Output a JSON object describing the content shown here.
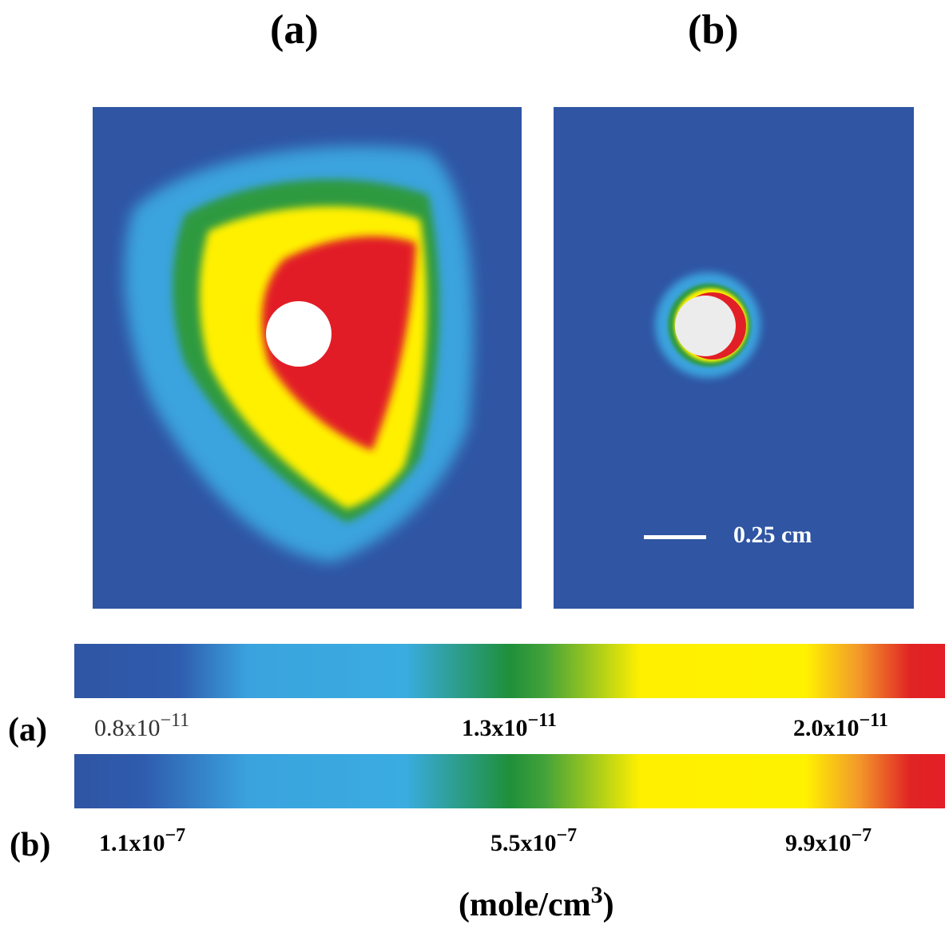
{
  "chart_data": {
    "type": "heatmap",
    "panels": [
      {
        "label": "(a)",
        "colorbar": {
          "label": "(a)",
          "ticks": [
            "0.8x10",
            "1.3x10",
            "2.0x10"
          ],
          "exponents": [
            "−11",
            "−11",
            "−11"
          ],
          "values": [
            8e-12,
            1.3e-11,
            2e-11
          ]
        }
      },
      {
        "label": "(b)",
        "scale_bar": "0.25 cm",
        "colorbar": {
          "label": "(b)",
          "ticks": [
            "1.1x10",
            "5.5x10",
            "9.9x10"
          ],
          "exponents": [
            "−7",
            "−7",
            "−7"
          ],
          "values": [
            1.1e-07,
            5.5e-07,
            9.9e-07
          ]
        }
      }
    ],
    "units": {
      "text": "(mole/cm",
      "exponent": "3",
      "close": ")"
    },
    "colormap": [
      "#2f55a3",
      "#3aace0",
      "#1f8f3a",
      "#fff000",
      "#e41e26"
    ]
  }
}
